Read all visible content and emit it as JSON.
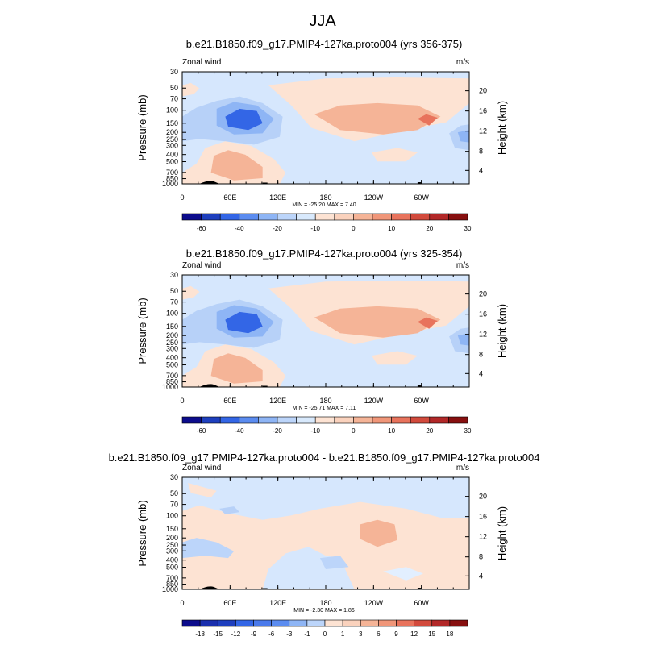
{
  "page_title": "JJA",
  "colors": {
    "neg": [
      "#0c0c8c",
      "#1e3fbe",
      "#3366e6",
      "#5b8cf0",
      "#8eb5f5",
      "#bcd5fa",
      "#d8e9fc"
    ],
    "zero_band": [
      "#e2efff",
      "#fde3d3"
    ],
    "pos": [
      "#fad2bd",
      "#f5b497",
      "#f09679",
      "#e8735c",
      "#d24a3c",
      "#b22828",
      "#870f0f"
    ],
    "background": "#d6e7fd"
  },
  "chart_data": [
    {
      "type": "contour",
      "title": "b.e21.B1850.f09_g17.PMIP4-127ka.proto004 (yrs 356-375)",
      "left_label": "Zonal wind",
      "right_label": "m/s",
      "ylabel": "Pressure (mb)",
      "y2label": "Height (km)",
      "x_ticks": [
        "0",
        "60E",
        "120E",
        "180",
        "120W",
        "60W"
      ],
      "y_ticks": [
        "30",
        "50",
        "70",
        "100",
        "150",
        "200",
        "250",
        "300",
        "400",
        "500",
        "700",
        "850",
        "1000"
      ],
      "y2_ticks": [
        "20",
        "16",
        "12",
        "8",
        "4"
      ],
      "stats": "MIN = -25.20  MAX =   7.40",
      "colorbar_labels": [
        "-60",
        "-40",
        "-20",
        "-10",
        "0",
        "10",
        "20",
        "30"
      ]
    },
    {
      "type": "contour",
      "title": "b.e21.B1850.f09_g17.PMIP4-127ka.proto004 (yrs 325-354)",
      "left_label": "Zonal wind",
      "right_label": "m/s",
      "ylabel": "Pressure (mb)",
      "y2label": "Height (km)",
      "x_ticks": [
        "0",
        "60E",
        "120E",
        "180",
        "120W",
        "60W"
      ],
      "y_ticks": [
        "30",
        "50",
        "70",
        "100",
        "150",
        "200",
        "250",
        "300",
        "400",
        "500",
        "700",
        "850",
        "1000"
      ],
      "y2_ticks": [
        "20",
        "16",
        "12",
        "8",
        "4"
      ],
      "stats": "MIN = -25.71  MAX =   7.11",
      "colorbar_labels": [
        "-60",
        "-40",
        "-20",
        "-10",
        "0",
        "10",
        "20",
        "30"
      ]
    },
    {
      "type": "contour",
      "title": "b.e21.B1850.f09_g17.PMIP4-127ka.proto004 - b.e21.B1850.f09_g17.PMIP4-127ka.proto004",
      "left_label": "Zonal wind",
      "right_label": "m/s",
      "ylabel": "Pressure (mb)",
      "y2label": "Height (km)",
      "x_ticks": [
        "0",
        "60E",
        "120E",
        "180",
        "120W",
        "60W"
      ],
      "y_ticks": [
        "30",
        "50",
        "70",
        "100",
        "150",
        "200",
        "250",
        "300",
        "400",
        "500",
        "700",
        "850",
        "1000"
      ],
      "y2_ticks": [
        "20",
        "16",
        "12",
        "8",
        "4"
      ],
      "stats": "MIN = -2.30  MAX =  1.86",
      "colorbar_labels": [
        "-18",
        "-15",
        "-12",
        "-9",
        "-6",
        "-3",
        "-1",
        "0",
        "1",
        "3",
        "6",
        "9",
        "12",
        "15",
        "18"
      ]
    }
  ]
}
